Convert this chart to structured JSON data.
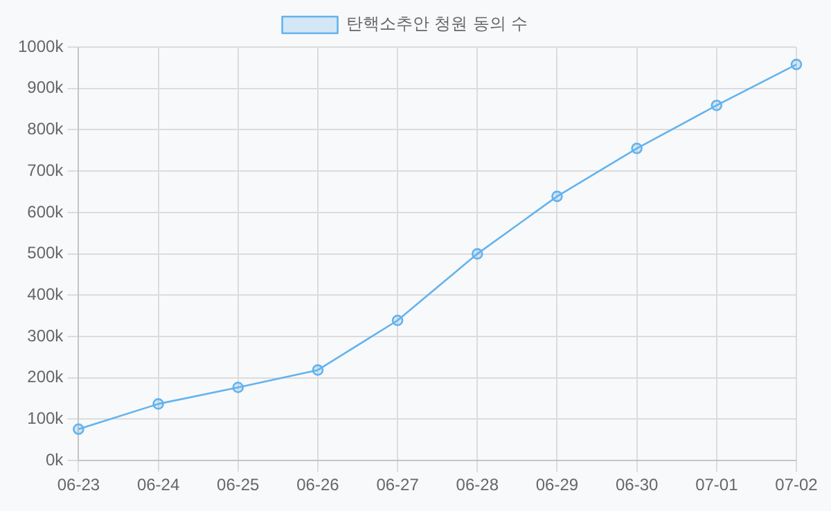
{
  "chart_data": {
    "type": "line",
    "categories": [
      "06-23",
      "06-24",
      "06-25",
      "06-26",
      "06-27",
      "06-28",
      "06-29",
      "06-30",
      "07-01",
      "07-02"
    ],
    "series": [
      {
        "name": "탄핵소추안 청원 동의 수",
        "color": "#63b3ed",
        "values": [
          76000,
          137000,
          177000,
          219000,
          339000,
          500000,
          639000,
          755000,
          859000,
          958000
        ]
      }
    ],
    "ylim": [
      0,
      1000000
    ],
    "yticks": [
      {
        "value": 0,
        "label": "0k"
      },
      {
        "value": 100000,
        "label": "100k"
      },
      {
        "value": 200000,
        "label": "200k"
      },
      {
        "value": 300000,
        "label": "300k"
      },
      {
        "value": 400000,
        "label": "400k"
      },
      {
        "value": 500000,
        "label": "500k"
      },
      {
        "value": 600000,
        "label": "600k"
      },
      {
        "value": 700000,
        "label": "700k"
      },
      {
        "value": 800000,
        "label": "800k"
      },
      {
        "value": 900000,
        "label": "900k"
      },
      {
        "value": 1000000,
        "label": "1000k"
      }
    ],
    "grid": true,
    "legend": "top",
    "marker": "circle",
    "line_style": "solid"
  }
}
